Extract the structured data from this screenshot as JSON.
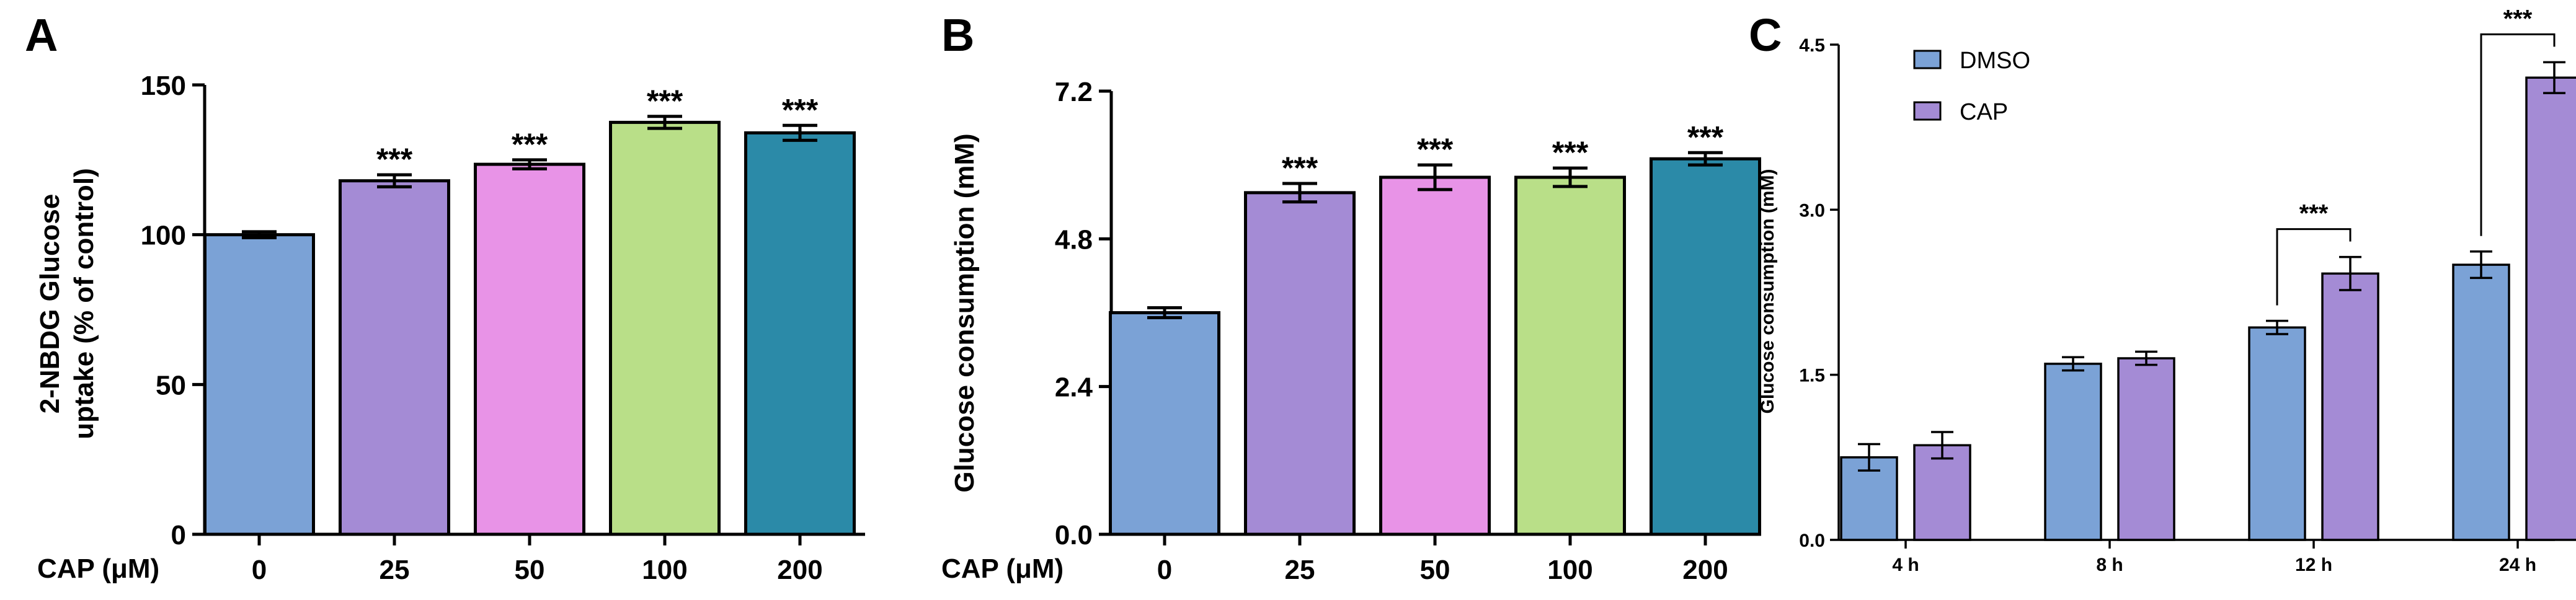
{
  "colors": {
    "blue": "#7ba2d6",
    "purple": "#a48bd5",
    "pink": "#e893e7",
    "green": "#b9df88",
    "teal": "#2b8aa8",
    "dmso": "#7ba2d6",
    "cap": "#a48bd5"
  },
  "chart_data": [
    {
      "id": "A",
      "type": "bar",
      "panel_label": "A",
      "xlabel": "CAP (μM)",
      "ylabel_lines": [
        "2-NBDG Glucose",
        "uptake (% of control)"
      ],
      "categories": [
        "0",
        "25",
        "50",
        "100",
        "200"
      ],
      "values": [
        100,
        118,
        123.5,
        137.5,
        134
      ],
      "errors": [
        1,
        2,
        1.5,
        2,
        2.5
      ],
      "significance": [
        "",
        "***",
        "***",
        "***",
        "***"
      ],
      "bar_colors": [
        "#7ba2d6",
        "#a48bd5",
        "#e893e7",
        "#b9df88",
        "#2b8aa8"
      ],
      "ylim": [
        0,
        150
      ],
      "yticks": [
        0,
        50,
        100,
        150
      ],
      "ytick_labels": [
        "0",
        "50",
        "100",
        "150"
      ],
      "grid": false
    },
    {
      "id": "B",
      "type": "bar",
      "panel_label": "B",
      "xlabel": "CAP (μM)",
      "ylabel_lines": [
        "Glucose consumption (mM)"
      ],
      "categories": [
        "0",
        "25",
        "50",
        "100",
        "200"
      ],
      "values": [
        3.6,
        5.55,
        5.8,
        5.8,
        6.1
      ],
      "errors": [
        0.08,
        0.15,
        0.2,
        0.15,
        0.1
      ],
      "significance": [
        "",
        "***",
        "***",
        "***",
        "***"
      ],
      "bar_colors": [
        "#7ba2d6",
        "#a48bd5",
        "#e893e7",
        "#b9df88",
        "#2b8aa8"
      ],
      "ylim": [
        0,
        7.2
      ],
      "yticks": [
        0,
        2.4,
        4.8,
        7.2
      ],
      "ytick_labels": [
        "0.0",
        "2.4",
        "4.8",
        "7.2"
      ],
      "grid": false
    },
    {
      "id": "C",
      "type": "bar",
      "panel_label": "C",
      "ylabel_lines": [
        "Glucose consumption (mM)"
      ],
      "categories": [
        "4 h",
        "8 h",
        "12 h",
        "24 h"
      ],
      "series": [
        {
          "name": "DMSO",
          "color": "#7ba2d6",
          "values": [
            0.75,
            1.6,
            1.93,
            2.5
          ],
          "errors": [
            0.12,
            0.06,
            0.06,
            0.12
          ]
        },
        {
          "name": "CAP",
          "color": "#a48bd5",
          "values": [
            0.86,
            1.65,
            2.42,
            4.2
          ],
          "errors": [
            0.12,
            0.06,
            0.15,
            0.14
          ]
        }
      ],
      "significance": [
        {
          "category_index": 2,
          "label": "***"
        },
        {
          "category_index": 3,
          "label": "***"
        }
      ],
      "ylim": [
        0,
        4.5
      ],
      "yticks": [
        0,
        1.5,
        3.0,
        4.5
      ],
      "ytick_labels": [
        "0.0",
        "1.5",
        "3.0",
        "4.5"
      ],
      "legend": {
        "position": "top-left"
      },
      "grid": false
    }
  ]
}
